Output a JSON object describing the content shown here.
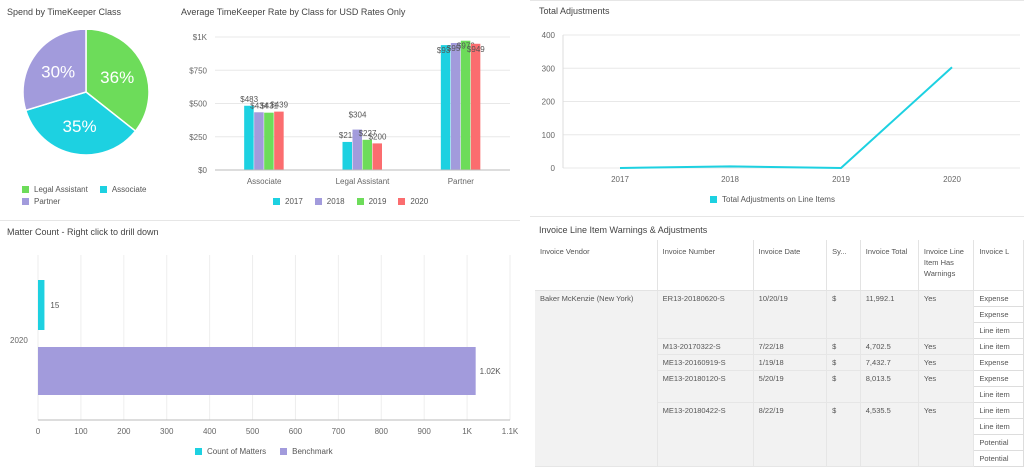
{
  "pie": {
    "title": "Spend by TimeKeeper Class",
    "labels": [
      "36%",
      "35%",
      "30%"
    ],
    "legend": [
      "Legal Assistant",
      "Associate",
      "Partner"
    ]
  },
  "bar": {
    "title": "Average TimeKeeper Rate by Class for USD Rates Only",
    "legend": [
      "2017",
      "2018",
      "2019",
      "2020"
    ]
  },
  "line": {
    "title": "Total Adjustments",
    "legend": "Total Adjustments on Line Items"
  },
  "hbar": {
    "title": "Matter Count - Right click to drill down",
    "legend": [
      "Count of Matters",
      "Benchmark"
    ]
  },
  "table": {
    "title": "Invoice Line Item Warnings & Adjustments",
    "headers": [
      "Invoice Vendor",
      "Invoice Number",
      "Invoice Date",
      "Sy...",
      "Invoice Total",
      "Invoice Line Item Has Warnings",
      "Invoice L"
    ],
    "vendor": "Baker McKenzie (New York)",
    "rows": [
      {
        "number": "ER13-20180620-S",
        "date": "10/20/19",
        "sym": "$",
        "total": "11,992.1",
        "warn": "Yes",
        "lines": [
          "Expense",
          "Expense",
          "Line item"
        ]
      },
      {
        "number": "M13-20170322-S",
        "date": "7/22/18",
        "sym": "$",
        "total": "4,702.5",
        "warn": "Yes",
        "lines": [
          "Line item"
        ]
      },
      {
        "number": "ME13-20160919-S",
        "date": "1/19/18",
        "sym": "$",
        "total": "7,432.7",
        "warn": "Yes",
        "lines": [
          "Expense"
        ]
      },
      {
        "number": "ME13-20180120-S",
        "date": "5/20/19",
        "sym": "$",
        "total": "8,013.5",
        "warn": "Yes",
        "lines": [
          "Expense",
          "Line item"
        ]
      },
      {
        "number": "ME13-20180422-S",
        "date": "8/22/19",
        "sym": "$",
        "total": "4,535.5",
        "warn": "Yes",
        "lines": [
          "Line item",
          "Line item",
          "Potential",
          "Potential"
        ]
      }
    ]
  },
  "colors": {
    "cyan": "#1dd1e1",
    "purple": "#a29bdc",
    "green": "#6ddc5a",
    "red": "#fb6d6f"
  },
  "chart_data": [
    {
      "type": "pie",
      "title": "Spend by TimeKeeper Class",
      "categories": [
        "Legal Assistant",
        "Associate",
        "Partner"
      ],
      "values": [
        36,
        35,
        30
      ]
    },
    {
      "type": "bar",
      "title": "Average TimeKeeper Rate by Class for USD Rates Only",
      "categories": [
        "Associate",
        "Legal Assistant",
        "Partner"
      ],
      "series": [
        {
          "name": "2017",
          "values": [
            483,
            211,
            939
          ]
        },
        {
          "name": "2018",
          "values": [
            434,
            304,
            955
          ]
        },
        {
          "name": "2019",
          "values": [
            431,
            227,
            972
          ]
        },
        {
          "name": "2020",
          "values": [
            439,
            200,
            949
          ]
        }
      ],
      "data_labels": [
        [
          "$483",
          "$434",
          "$431",
          "$439"
        ],
        [
          "$211",
          "$304",
          "$227",
          "$200"
        ],
        [
          "$939",
          "$955",
          "$972",
          "$949"
        ]
      ],
      "yticks": [
        "$0",
        "$250",
        "$500",
        "$750",
        "$1K"
      ],
      "ylim": [
        0,
        1000
      ]
    },
    {
      "type": "line",
      "title": "Total Adjustments",
      "x": [
        "2017",
        "2018",
        "2019",
        "2020"
      ],
      "series": [
        {
          "name": "Total Adjustments on Line Items",
          "values": [
            0,
            5,
            0,
            303
          ]
        }
      ],
      "yticks": [
        "0",
        "100",
        "200",
        "300",
        "400"
      ],
      "ylim": [
        0,
        400
      ]
    },
    {
      "type": "bar",
      "orientation": "horizontal",
      "title": "Matter Count - Right click to drill down",
      "categories": [
        "2020"
      ],
      "series": [
        {
          "name": "Count of Matters",
          "values": [
            15
          ],
          "labels": [
            "15"
          ]
        },
        {
          "name": "Benchmark",
          "values": [
            1020
          ],
          "labels": [
            "1.02K"
          ]
        }
      ],
      "xticks": [
        "0",
        "100",
        "200",
        "300",
        "400",
        "500",
        "600",
        "700",
        "800",
        "900",
        "1K",
        "1.1K"
      ],
      "xlim": [
        0,
        1100
      ]
    }
  ]
}
